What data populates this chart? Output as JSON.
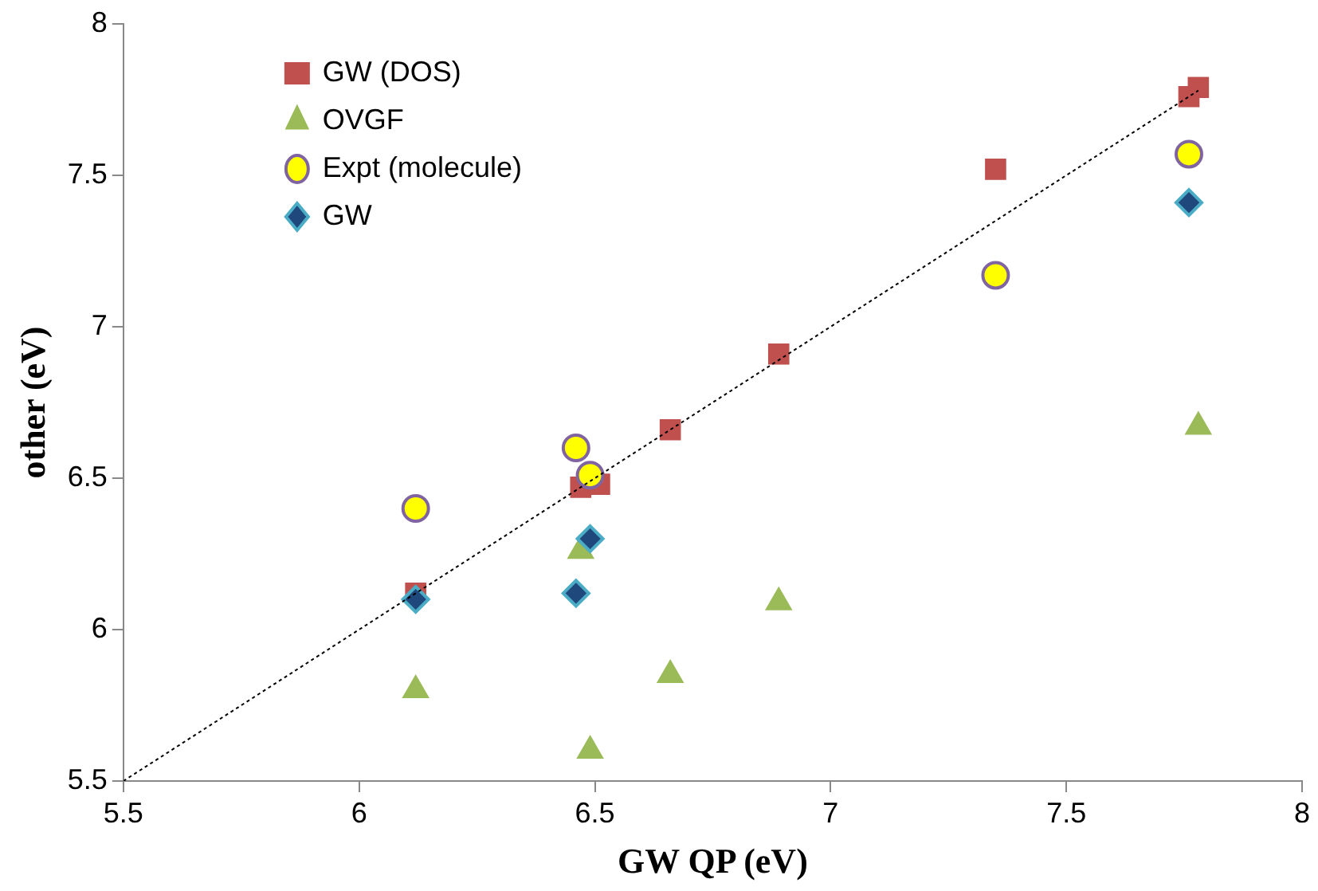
{
  "chart_data": {
    "type": "scatter",
    "xlabel": "GW QP (eV)",
    "ylabel": "other (eV)",
    "xlim": [
      5.5,
      8
    ],
    "xticks": [
      5.5,
      6,
      6.5,
      7,
      7.5,
      8
    ],
    "ylim": [
      5.5,
      8
    ],
    "yticks": [
      5.5,
      6,
      6.5,
      7,
      7.5,
      8
    ],
    "grid": false,
    "legend": "top left",
    "series": [
      {
        "type": "line",
        "x": [
          5.5,
          7.78
        ],
        "values": [
          5.5,
          7.78
        ],
        "color": "#000000",
        "line_style": "dotted",
        "marker": "none"
      },
      {
        "name": "GW (DOS)",
        "color": "#c0504d",
        "marker": "square",
        "x": [
          6.12,
          6.47,
          6.51,
          6.66,
          6.89,
          7.35,
          7.76,
          7.78
        ],
        "values": [
          6.12,
          6.47,
          6.48,
          6.66,
          6.91,
          7.52,
          7.76,
          7.79
        ]
      },
      {
        "name": "OVGF",
        "color": "#9bbb59",
        "marker": "triangle",
        "x": [
          6.12,
          6.47,
          6.49,
          6.66,
          6.89,
          7.78
        ],
        "values": [
          5.8,
          6.26,
          5.6,
          5.85,
          6.09,
          6.67
        ]
      },
      {
        "name": "Expt (molecule)",
        "color": "#ffff00",
        "marker": "circle",
        "x": [
          6.12,
          6.46,
          6.49,
          7.35,
          7.76
        ],
        "values": [
          6.4,
          6.6,
          6.51,
          7.17,
          7.57
        ]
      },
      {
        "name": "GW",
        "color": "#1f497d",
        "marker": "diamond",
        "x": [
          6.12,
          6.46,
          6.49,
          7.76
        ],
        "values": [
          6.1,
          6.12,
          6.3,
          7.41
        ]
      }
    ]
  }
}
